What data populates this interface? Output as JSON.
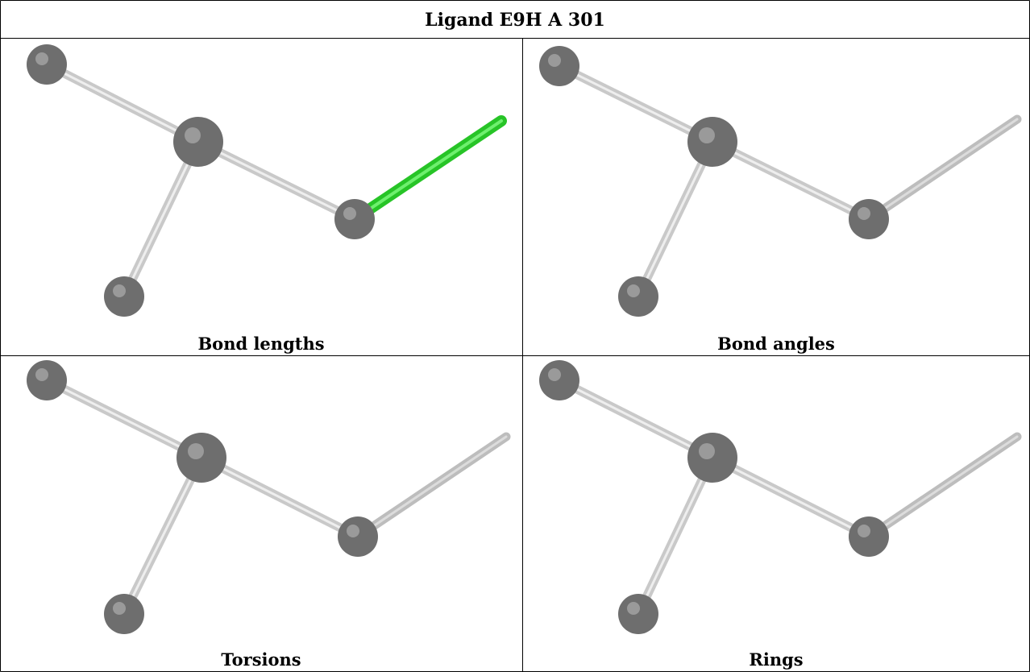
{
  "title": "Ligand E9H A 301",
  "panels": [
    {
      "caption": "Bond lengths",
      "highlight": "green"
    },
    {
      "caption": "Bond angles",
      "highlight": "none"
    },
    {
      "caption": "Torsions",
      "highlight": "none"
    },
    {
      "caption": "Rings",
      "highlight": "none"
    }
  ],
  "colors": {
    "atom": "#6e6e6e",
    "bond": "#bdbdbd",
    "highlight_bond": "#2fcf2f"
  }
}
